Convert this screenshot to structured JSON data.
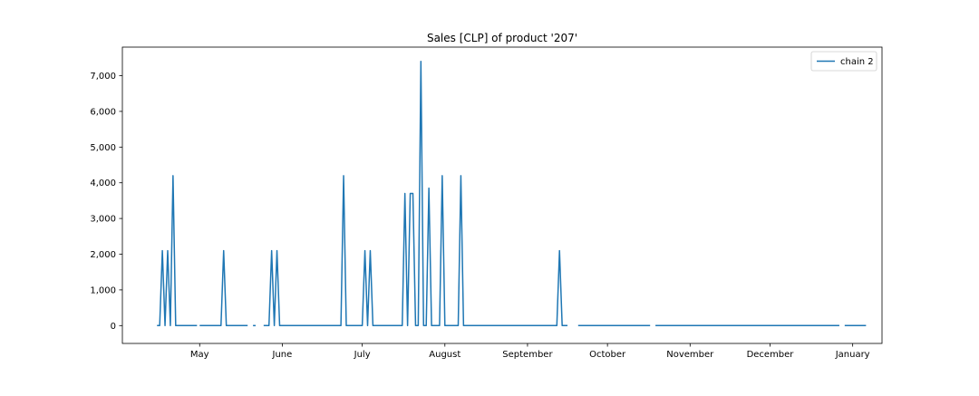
{
  "chart_data": {
    "type": "line",
    "title": "Sales [CLP] of product '207'",
    "xlabel": "",
    "ylabel": "",
    "x_axis": {
      "type": "date",
      "xlim": [
        "2021-04-02",
        "2022-01-12"
      ],
      "ticks": [
        {
          "date": "2021-05-01",
          "label": "May"
        },
        {
          "date": "2021-06-01",
          "label": "June"
        },
        {
          "date": "2021-07-01",
          "label": "July"
        },
        {
          "date": "2021-08-01",
          "label": "August"
        },
        {
          "date": "2021-09-01",
          "label": "September"
        },
        {
          "date": "2021-10-01",
          "label": "October"
        },
        {
          "date": "2021-11-01",
          "label": "November"
        },
        {
          "date": "2021-12-01",
          "label": "December"
        },
        {
          "date": "2022-01-01",
          "label": "January"
        }
      ]
    },
    "y_axis": {
      "ylim": [
        -500,
        7800
      ],
      "ticks": [
        0,
        1000,
        2000,
        3000,
        4000,
        5000,
        6000,
        7000
      ],
      "tick_labels": [
        "0",
        "1,000",
        "2,000",
        "3,000",
        "4,000",
        "5,000",
        "6,000",
        "7,000"
      ]
    },
    "grid": false,
    "legend_position": "top-right",
    "series": [
      {
        "name": "chain 2",
        "color": "#1f77b4",
        "segments": [
          [
            [
              "2021-04-15",
              0
            ],
            [
              "2021-04-16",
              0
            ],
            [
              "2021-04-17",
              2100
            ],
            [
              "2021-04-18",
              0
            ],
            [
              "2021-04-19",
              2100
            ],
            [
              "2021-04-20",
              0
            ],
            [
              "2021-04-21",
              4200
            ],
            [
              "2021-04-22",
              0
            ],
            [
              "2021-04-30",
              0
            ]
          ],
          [
            [
              "2021-05-01",
              0
            ],
            [
              "2021-05-09",
              0
            ],
            [
              "2021-05-10",
              2100
            ],
            [
              "2021-05-11",
              0
            ],
            [
              "2021-05-19",
              0
            ]
          ],
          [
            [
              "2021-05-21",
              0
            ],
            [
              "2021-05-22",
              0
            ]
          ],
          [
            [
              "2021-05-25",
              0
            ],
            [
              "2021-05-27",
              0
            ],
            [
              "2021-05-28",
              2100
            ],
            [
              "2021-05-29",
              0
            ],
            [
              "2021-05-30",
              2100
            ],
            [
              "2021-05-31",
              0
            ],
            [
              "2021-06-23",
              0
            ],
            [
              "2021-06-24",
              4200
            ],
            [
              "2021-06-25",
              0
            ],
            [
              "2021-07-01",
              0
            ],
            [
              "2021-07-02",
              2100
            ],
            [
              "2021-07-03",
              0
            ],
            [
              "2021-07-04",
              2100
            ],
            [
              "2021-07-05",
              0
            ],
            [
              "2021-07-16",
              0
            ],
            [
              "2021-07-17",
              3700
            ],
            [
              "2021-07-18",
              0
            ],
            [
              "2021-07-19",
              3700
            ],
            [
              "2021-07-20",
              3700
            ],
            [
              "2021-07-21",
              0
            ],
            [
              "2021-07-22",
              0
            ],
            [
              "2021-07-23",
              7400
            ],
            [
              "2021-07-24",
              0
            ],
            [
              "2021-07-25",
              0
            ],
            [
              "2021-07-26",
              3850
            ],
            [
              "2021-07-27",
              0
            ],
            [
              "2021-07-30",
              0
            ],
            [
              "2021-07-31",
              4200
            ],
            [
              "2021-08-01",
              0
            ],
            [
              "2021-08-06",
              0
            ],
            [
              "2021-08-07",
              4200
            ],
            [
              "2021-08-08",
              0
            ],
            [
              "2021-09-12",
              0
            ],
            [
              "2021-09-13",
              2100
            ],
            [
              "2021-09-14",
              0
            ],
            [
              "2021-09-16",
              0
            ]
          ],
          [
            [
              "2021-09-20",
              0
            ],
            [
              "2021-10-17",
              0
            ]
          ],
          [
            [
              "2021-10-19",
              0
            ],
            [
              "2021-12-27",
              0
            ]
          ],
          [
            [
              "2021-12-29",
              0
            ],
            [
              "2022-01-06",
              0
            ]
          ]
        ]
      }
    ]
  }
}
